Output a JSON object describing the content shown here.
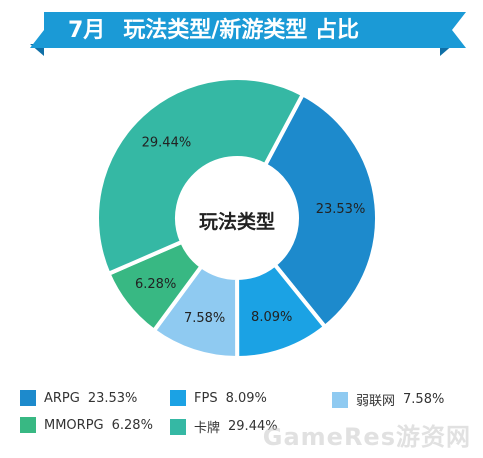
{
  "header": {
    "month": "7月",
    "title": "玩法类型/新游类型 占比"
  },
  "colors": {
    "banner": "#1b9ad6",
    "banner_dark": "#0f6fa6"
  },
  "chart_data": {
    "type": "donut",
    "center_label": "玩法类型",
    "slices": [
      {
        "name": "ARPG",
        "value": 23.53,
        "label": "23.53%",
        "color": "#1d8acc"
      },
      {
        "name": "FPS",
        "value": 8.09,
        "label": "8.09%",
        "color": "#1ba2e4"
      },
      {
        "name": "弱联网",
        "value": 7.58,
        "label": "7.58%",
        "color": "#8fcaf1"
      },
      {
        "name": "MMORPG",
        "value": 6.28,
        "label": "6.28%",
        "color": "#38b883"
      },
      {
        "name": "卡牌",
        "value": 29.44,
        "label": "29.44%",
        "color": "#35b8a4"
      }
    ]
  },
  "legend": [
    {
      "name": "ARPG",
      "value": "23.53%",
      "color": "#1d8acc"
    },
    {
      "name": "FPS",
      "value": "8.09%",
      "color": "#1ba2e4"
    },
    {
      "name": "弱联网",
      "value": "7.58%",
      "color": "#8fcaf1"
    },
    {
      "name": "MMORPG",
      "value": "6.28%",
      "color": "#38b883"
    },
    {
      "name": "卡牌",
      "value": "29.44%",
      "color": "#35b8a4"
    }
  ],
  "watermark": "GameRes游资网"
}
